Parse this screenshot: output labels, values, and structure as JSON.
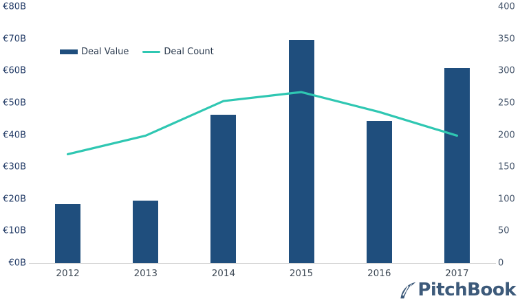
{
  "chart_data": {
    "type": "combo-bar-line",
    "categories": [
      "2012",
      "2013",
      "2014",
      "2015",
      "2016",
      "2017"
    ],
    "series": [
      {
        "name": "Deal Value",
        "type": "bar",
        "axis": "left",
        "unit": "EUR billions",
        "values": [
          18.4,
          19.6,
          46.3,
          69.8,
          44.4,
          61.0
        ]
      },
      {
        "name": "Deal Count",
        "type": "line",
        "axis": "right",
        "values": [
          170,
          199,
          253,
          267,
          236,
          199
        ]
      }
    ],
    "left_axis": {
      "tick_labels": [
        "€0B",
        "€10B",
        "€20B",
        "€30B",
        "€40B",
        "€50B",
        "€60B",
        "€70B",
        "€80B"
      ],
      "tick_values": [
        0,
        10,
        20,
        30,
        40,
        50,
        60,
        70,
        80
      ],
      "min": 0,
      "max": 80
    },
    "right_axis": {
      "tick_labels": [
        "0",
        "50",
        "100",
        "150",
        "200",
        "250",
        "300",
        "350",
        "400"
      ],
      "tick_values": [
        0,
        50,
        100,
        150,
        200,
        250,
        300,
        350,
        400
      ],
      "min": 0,
      "max": 400
    },
    "grid": false,
    "legend_position": "top-left"
  },
  "logo": {
    "text": "PitchBook"
  },
  "colors": {
    "bar": "#1f4e7d",
    "line": "#2fc7b2",
    "axis_line": "#d9d9d9",
    "left_axis_text": "#1f3864",
    "right_axis_text": "#44546a",
    "category_text": "#3f4a56",
    "legend_text": "#2b3a4e",
    "logo": "#3d5a7a"
  }
}
